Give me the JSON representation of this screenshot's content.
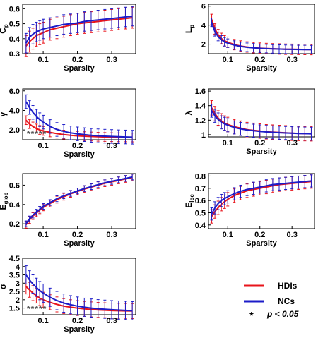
{
  "legend": {
    "items": [
      {
        "name": "HDIs",
        "color": "#e8141b"
      },
      {
        "name": "NCs",
        "color": "#1c1cc8"
      }
    ],
    "significance_symbol": "*",
    "significance_text": "p < 0.05"
  },
  "chart_data": [
    {
      "type": "line",
      "id": "cp",
      "ylabel": "C",
      "ylabel_sub": "p",
      "xlabel": "Sparsity",
      "xlim": [
        0.04,
        0.37
      ],
      "ylim": [
        0.3,
        0.63
      ],
      "xticks": [
        "0.1",
        "0.2",
        "0.3"
      ],
      "yticks": [
        "0.3",
        "0.4",
        "0.5",
        "0.6"
      ],
      "x": [
        0.05,
        0.06,
        0.07,
        0.08,
        0.09,
        0.1,
        0.12,
        0.14,
        0.16,
        0.18,
        0.2,
        0.22,
        0.24,
        0.26,
        0.28,
        0.3,
        0.32,
        0.34,
        0.36
      ],
      "series": [
        {
          "name": "HDIs",
          "color": "#e8141b",
          "values": [
            0.35,
            0.38,
            0.4,
            0.42,
            0.43,
            0.44,
            0.46,
            0.47,
            0.48,
            0.49,
            0.5,
            0.505,
            0.51,
            0.515,
            0.52,
            0.525,
            0.53,
            0.535,
            0.54
          ],
          "error": 0.07
        },
        {
          "name": "NCs",
          "color": "#1c1cc8",
          "values": [
            0.37,
            0.41,
            0.43,
            0.445,
            0.455,
            0.465,
            0.475,
            0.485,
            0.495,
            0.5,
            0.505,
            0.515,
            0.52,
            0.525,
            0.53,
            0.535,
            0.54,
            0.545,
            0.55
          ],
          "error": 0.065
        }
      ],
      "stars": ""
    },
    {
      "type": "line",
      "id": "lp",
      "ylabel": "L",
      "ylabel_sub": "p",
      "xlabel": "Sparsity",
      "xlim": [
        0.04,
        0.37
      ],
      "ylim": [
        1.0,
        6.2
      ],
      "xticks": [
        "0.1",
        "0.2",
        "0.3"
      ],
      "yticks": [
        "2",
        "4",
        "6"
      ],
      "x": [
        0.05,
        0.06,
        0.07,
        0.08,
        0.09,
        0.1,
        0.12,
        0.14,
        0.16,
        0.18,
        0.2,
        0.22,
        0.24,
        0.26,
        0.28,
        0.3,
        0.32,
        0.34,
        0.36
      ],
      "series": [
        {
          "name": "HDIs",
          "color": "#e8141b",
          "values": [
            4.6,
            3.6,
            3.0,
            2.6,
            2.35,
            2.2,
            1.95,
            1.8,
            1.7,
            1.63,
            1.58,
            1.54,
            1.51,
            1.49,
            1.47,
            1.46,
            1.45,
            1.44,
            1.43
          ],
          "error": 0.55
        },
        {
          "name": "NCs",
          "color": "#1c1cc8",
          "values": [
            4.3,
            3.3,
            2.8,
            2.45,
            2.25,
            2.1,
            1.9,
            1.76,
            1.67,
            1.61,
            1.56,
            1.53,
            1.5,
            1.48,
            1.46,
            1.45,
            1.44,
            1.43,
            1.42
          ],
          "error": 0.45
        }
      ],
      "stars": ""
    },
    {
      "type": "line",
      "id": "gamma",
      "ylabel": "γ",
      "ylabel_sub": "",
      "xlabel": "Sparsity",
      "xlim": [
        0.04,
        0.37
      ],
      "ylim": [
        1.0,
        6.2
      ],
      "xticks": [
        "0.1",
        "0.2",
        "0.3"
      ],
      "yticks": [
        "2.0",
        "4.0",
        "6.0"
      ],
      "x": [
        0.05,
        0.06,
        0.07,
        0.08,
        0.09,
        0.1,
        0.12,
        0.14,
        0.16,
        0.18,
        0.2,
        0.22,
        0.24,
        0.26,
        0.28,
        0.3,
        0.32,
        0.34,
        0.36
      ],
      "series": [
        {
          "name": "HDIs",
          "color": "#e8141b",
          "values": [
            3.0,
            2.6,
            2.35,
            2.15,
            2.0,
            1.9,
            1.75,
            1.62,
            1.52,
            1.45,
            1.4,
            1.36,
            1.33,
            1.3,
            1.28,
            1.26,
            1.25,
            1.24,
            1.23
          ],
          "error": 0.45
        },
        {
          "name": "NCs",
          "color": "#1c1cc8",
          "values": [
            4.9,
            4.3,
            3.8,
            3.4,
            3.05,
            2.8,
            2.35,
            2.05,
            1.85,
            1.7,
            1.6,
            1.52,
            1.45,
            1.4,
            1.36,
            1.33,
            1.3,
            1.28,
            1.26
          ],
          "error": 0.7
        }
      ],
      "stars": "*****"
    },
    {
      "type": "line",
      "id": "lambda",
      "ylabel": "λ",
      "ylabel_sub": "",
      "xlabel": "Sparsity",
      "xlim": [
        0.04,
        0.37
      ],
      "ylim": [
        0.97,
        1.63
      ],
      "xticks": [
        "0.1",
        "0.2",
        "0.3"
      ],
      "yticks": [
        "1",
        "1.2",
        "1.4",
        "1.6"
      ],
      "x": [
        0.05,
        0.06,
        0.07,
        0.08,
        0.09,
        0.1,
        0.12,
        0.14,
        0.16,
        0.18,
        0.2,
        0.22,
        0.24,
        0.26,
        0.28,
        0.3,
        0.32,
        0.34,
        0.36
      ],
      "series": [
        {
          "name": "HDIs",
          "color": "#e8141b",
          "values": [
            1.37,
            1.29,
            1.23,
            1.19,
            1.16,
            1.14,
            1.11,
            1.09,
            1.07,
            1.06,
            1.05,
            1.04,
            1.035,
            1.03,
            1.025,
            1.02,
            1.018,
            1.015,
            1.013
          ],
          "error": 0.1
        },
        {
          "name": "NCs",
          "color": "#1c1cc8",
          "values": [
            1.33,
            1.26,
            1.21,
            1.17,
            1.15,
            1.13,
            1.1,
            1.08,
            1.065,
            1.055,
            1.045,
            1.038,
            1.032,
            1.027,
            1.023,
            1.02,
            1.017,
            1.015,
            1.013
          ],
          "error": 0.09
        }
      ],
      "stars": ""
    },
    {
      "type": "line",
      "id": "eglob",
      "ylabel": "E",
      "ylabel_sub": "glob",
      "xlabel": "Sparsity",
      "xlim": [
        0.04,
        0.37
      ],
      "ylim": [
        0.15,
        0.72
      ],
      "xticks": [
        "0.1",
        "0.2",
        "0.3"
      ],
      "yticks": [
        "0.2",
        "0.4",
        "0.6"
      ],
      "x": [
        0.05,
        0.06,
        0.07,
        0.08,
        0.09,
        0.1,
        0.12,
        0.14,
        0.16,
        0.18,
        0.2,
        0.22,
        0.24,
        0.26,
        0.28,
        0.3,
        0.32,
        0.34,
        0.36
      ],
      "series": [
        {
          "name": "HDIs",
          "color": "#e8141b",
          "values": [
            0.19,
            0.24,
            0.28,
            0.31,
            0.34,
            0.37,
            0.41,
            0.45,
            0.48,
            0.51,
            0.535,
            0.56,
            0.58,
            0.6,
            0.62,
            0.635,
            0.65,
            0.665,
            0.68
          ],
          "error": 0.035
        },
        {
          "name": "NCs",
          "color": "#1c1cc8",
          "values": [
            0.2,
            0.25,
            0.29,
            0.32,
            0.35,
            0.38,
            0.42,
            0.46,
            0.49,
            0.515,
            0.54,
            0.565,
            0.585,
            0.605,
            0.625,
            0.64,
            0.655,
            0.67,
            0.685
          ],
          "error": 0.03
        }
      ],
      "stars": ""
    },
    {
      "type": "line",
      "id": "eloc",
      "ylabel": "E",
      "ylabel_sub": "loc",
      "xlabel": "Sparsity",
      "xlim": [
        0.04,
        0.37
      ],
      "ylim": [
        0.37,
        0.82
      ],
      "xticks": [
        "0.1",
        "0.2",
        "0.3"
      ],
      "yticks": [
        "0.4",
        "0.5",
        "0.6",
        "0.7",
        "0.8"
      ],
      "x": [
        0.05,
        0.06,
        0.07,
        0.08,
        0.09,
        0.1,
        0.12,
        0.14,
        0.16,
        0.18,
        0.2,
        0.22,
        0.24,
        0.26,
        0.28,
        0.3,
        0.32,
        0.34,
        0.36
      ],
      "series": [
        {
          "name": "HDIs",
          "color": "#e8141b",
          "values": [
            0.47,
            0.51,
            0.54,
            0.57,
            0.59,
            0.61,
            0.64,
            0.66,
            0.68,
            0.69,
            0.7,
            0.71,
            0.72,
            0.73,
            0.735,
            0.74,
            0.745,
            0.75,
            0.755
          ],
          "error": 0.055
        },
        {
          "name": "NCs",
          "color": "#1c1cc8",
          "values": [
            0.49,
            0.54,
            0.575,
            0.6,
            0.615,
            0.63,
            0.655,
            0.675,
            0.69,
            0.7,
            0.71,
            0.72,
            0.73,
            0.735,
            0.74,
            0.745,
            0.75,
            0.755,
            0.76
          ],
          "error": 0.05
        }
      ],
      "stars": ""
    },
    {
      "type": "line",
      "id": "sigma",
      "ylabel": "σ",
      "ylabel_sub": "",
      "xlabel": "Sparsity",
      "xlim": [
        0.04,
        0.37
      ],
      "ylim": [
        1.1,
        4.5
      ],
      "xticks": [
        "0.1",
        "0.2",
        "0.3"
      ],
      "yticks": [
        "1.5",
        "2",
        "2.5",
        "3",
        "3.5",
        "4",
        "4.5"
      ],
      "x": [
        0.05,
        0.06,
        0.07,
        0.08,
        0.09,
        0.1,
        0.12,
        0.14,
        0.16,
        0.18,
        0.2,
        0.22,
        0.24,
        0.26,
        0.28,
        0.3,
        0.32,
        0.34,
        0.36
      ],
      "series": [
        {
          "name": "HDIs",
          "color": "#e8141b",
          "values": [
            2.8,
            2.6,
            2.4,
            2.25,
            2.1,
            2.0,
            1.85,
            1.72,
            1.62,
            1.55,
            1.5,
            1.45,
            1.42,
            1.39,
            1.37,
            1.35,
            1.34,
            1.33,
            1.32
          ],
          "error": 0.45
        },
        {
          "name": "NCs",
          "color": "#1c1cc8",
          "values": [
            3.5,
            3.2,
            2.95,
            2.75,
            2.55,
            2.4,
            2.15,
            1.95,
            1.8,
            1.7,
            1.62,
            1.55,
            1.5,
            1.46,
            1.43,
            1.4,
            1.38,
            1.36,
            1.34
          ],
          "error": 0.55
        }
      ],
      "stars": "*****"
    }
  ]
}
